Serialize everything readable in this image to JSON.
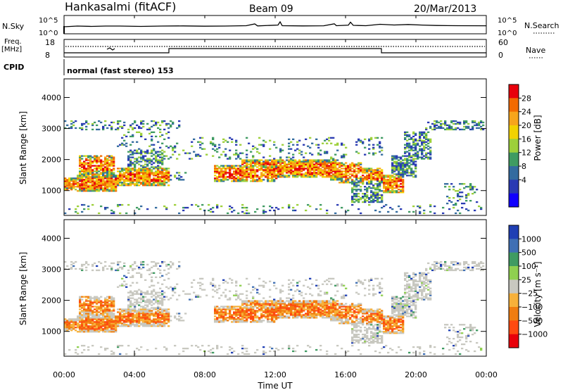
{
  "header": {
    "station": "Hankasalmi (fitACF)",
    "beam": "Beam 09",
    "date": "20/Mar/2013"
  },
  "top_panels": {
    "nsky_label": "N.Sky",
    "nsearch_label": "N.Search",
    "freq_label_line1": "Freq.",
    "freq_label_line2": "[MHz]",
    "nave_label": "Nave",
    "cpid_label": "CPID",
    "cpid_text": "normal (fast stereo) 153",
    "count_ticks": [
      "10^5",
      "10^0"
    ],
    "freq_ticks": [
      "18",
      "8"
    ],
    "nave_ticks": [
      "60",
      "0"
    ]
  },
  "chart_data": [
    {
      "type": "heatmap",
      "name": "power",
      "ylabel": "Slant Range [km]",
      "ylim": [
        200,
        4600
      ],
      "yticks": [
        1000,
        2000,
        3000,
        4000
      ],
      "xlim": [
        0,
        24
      ],
      "colorbar": {
        "label": "Power [dB]",
        "ticks": [
          "28",
          "24",
          "20",
          "16",
          "12",
          "8",
          "4"
        ],
        "colors": [
          "#e8000b",
          "#f26a00",
          "#f7a51c",
          "#f2d200",
          "#9dd03a",
          "#3f9b62",
          "#336b9f",
          "#2a3ab3",
          "#1100ff"
        ]
      }
    },
    {
      "type": "heatmap",
      "name": "velocity",
      "ylabel": "Slant Range [km]",
      "ylim": [
        200,
        4600
      ],
      "yticks": [
        1000,
        2000,
        3000,
        4000
      ],
      "xlim": [
        0,
        24
      ],
      "xlabel": "Time UT",
      "xticks": [
        "00:00",
        "04:00",
        "08:00",
        "12:00",
        "16:00",
        "20:00",
        "00:00"
      ],
      "colorbar": {
        "label": "Velocity [m s⁻¹]",
        "ticks": [
          "1000",
          "500",
          "100",
          "25",
          "−25",
          "−100",
          "−500",
          "−1000"
        ],
        "colors": [
          "#1f3fb4",
          "#3f6fb4",
          "#3f9b62",
          "#8fd050",
          "#c8c8c0",
          "#f7b13a",
          "#f07d10",
          "#ff4a10",
          "#e8000b"
        ]
      }
    }
  ]
}
